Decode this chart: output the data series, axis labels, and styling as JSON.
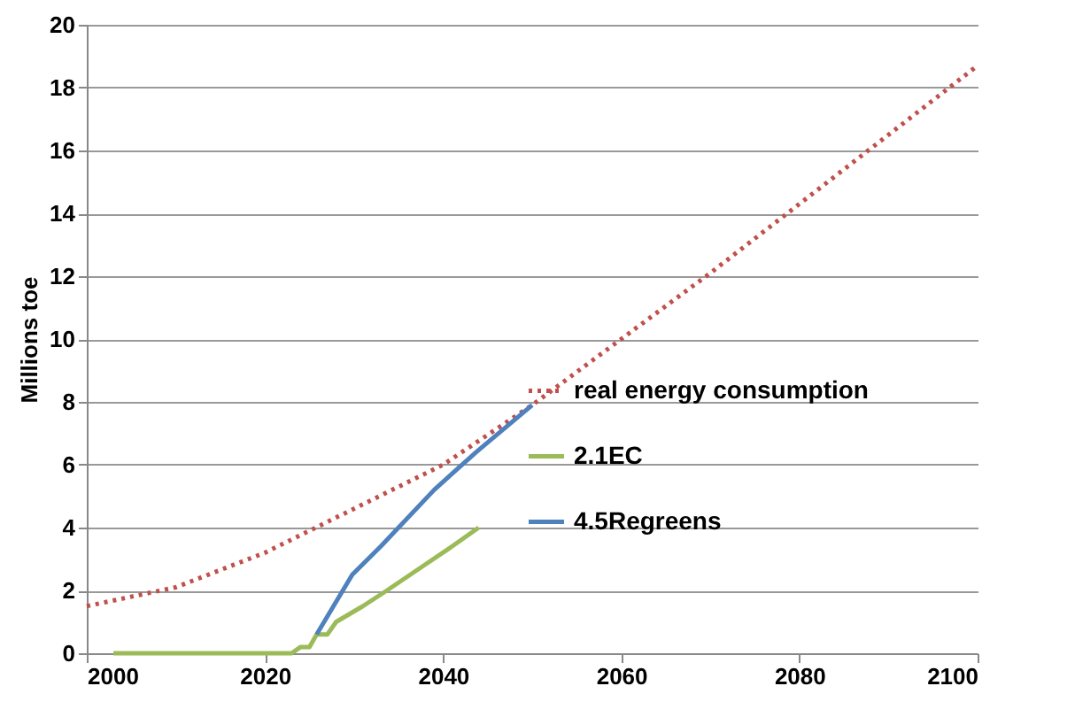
{
  "chart_data": {
    "type": "line",
    "ylabel": "Millions toe",
    "xlim": [
      2000,
      2100
    ],
    "ylim": [
      0,
      20
    ],
    "xticks": [
      2000,
      2020,
      2040,
      2060,
      2080,
      2100
    ],
    "yticks": [
      0,
      2,
      4,
      6,
      8,
      10,
      12,
      14,
      16,
      18,
      20
    ],
    "grid": "y",
    "legend": "right",
    "marker": "none",
    "series": [
      {
        "name": "real energy consumption",
        "color": "#c0504d",
        "line_style": "dotted",
        "x": [
          2000,
          2010,
          2020,
          2030,
          2040,
          2050,
          2060,
          2070,
          2080,
          2090,
          2100
        ],
        "values": [
          1.5,
          2.1,
          3.2,
          4.6,
          6.0,
          7.9,
          10.0,
          12.1,
          14.3,
          16.5,
          18.7
        ]
      },
      {
        "name": "2.1EC",
        "color": "#9bbb59",
        "line_style": "solid",
        "x": [
          2003,
          2023,
          2024,
          2025,
          2025.8,
          2027,
          2028,
          2031,
          2033.7,
          2038.4,
          2041,
          2044
        ],
        "values": [
          0,
          0,
          0.2,
          0.2,
          0.6,
          0.6,
          1.0,
          1.5,
          2.0,
          2.9,
          3.4,
          4.0
        ]
      },
      {
        "name": "4.5Regreens",
        "color": "#4f81bd",
        "line_style": "solid",
        "x": [
          2025.8,
          2029.8,
          2033,
          2039,
          2043.7,
          2050
        ],
        "values": [
          0.6,
          2.5,
          3.4,
          5.2,
          6.4,
          7.9
        ]
      }
    ]
  }
}
